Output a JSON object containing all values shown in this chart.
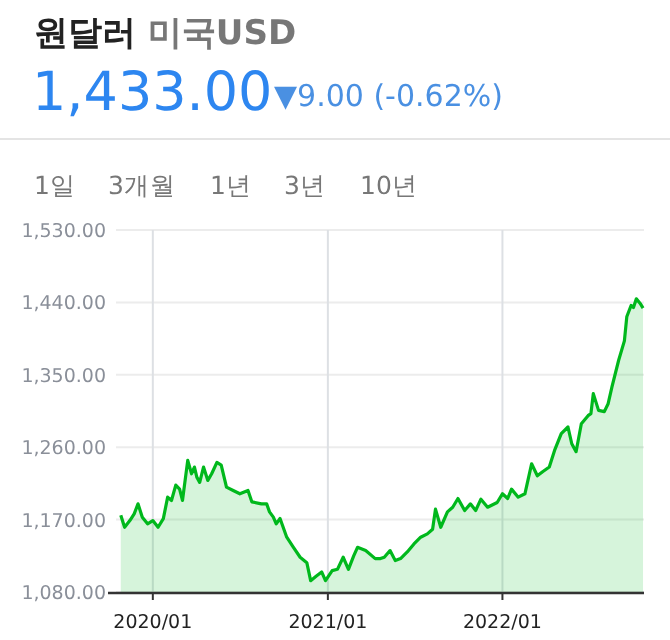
{
  "chart_data": {
    "type": "area",
    "title": "원달러",
    "subtitle": "미국USD",
    "annotations": [
      "1,433.00",
      "▼9.00 (-0.62%)",
      "1일",
      "3개월",
      "1년",
      "3년",
      "10년"
    ],
    "color": "#00b81c",
    "grid": true,
    "xlim": [
      "2019-10-16",
      "2022-10-24"
    ],
    "ylim": [
      1080,
      1530
    ],
    "xticks": [
      {
        "value": "2020-01-01",
        "label": "2020/01"
      },
      {
        "value": "2021-01-01",
        "label": "2021/01"
      },
      {
        "value": "2022-01-01",
        "label": "2022/01"
      }
    ],
    "yticks": [
      {
        "value": 1080,
        "label": "1,080.00"
      },
      {
        "value": 1170,
        "label": "1,170.00"
      },
      {
        "value": 1260,
        "label": "1,260.00"
      },
      {
        "value": 1350,
        "label": "1,350.00"
      },
      {
        "value": 1440,
        "label": "1,440.00"
      },
      {
        "value": 1530,
        "label": "1,530.00"
      }
    ],
    "x": [
      "2019-10-26",
      "2019-11-03",
      "2019-11-14",
      "2019-11-23",
      "2019-12-01",
      "2019-12-10",
      "2019-12-21",
      "2020-01-01",
      "2020-01-12",
      "2020-01-23",
      "2020-02-01",
      "2020-02-09",
      "2020-02-18",
      "2020-02-26",
      "2020-03-03",
      "2020-03-14",
      "2020-03-22",
      "2020-03-28",
      "2020-04-02",
      "2020-04-08",
      "2020-04-16",
      "2020-04-25",
      "2020-05-03",
      "2020-05-14",
      "2020-05-23",
      "2020-06-03",
      "2020-06-17",
      "2020-07-01",
      "2020-07-18",
      "2020-07-26",
      "2020-08-15",
      "2020-08-26",
      "2020-09-01",
      "2020-09-09",
      "2020-09-15",
      "2020-09-23",
      "2020-10-07",
      "2020-10-21",
      "2020-11-04",
      "2020-11-18",
      "2020-11-26",
      "2020-12-08",
      "2020-12-19",
      "2020-12-27",
      "2021-01-10",
      "2021-01-21",
      "2021-02-02",
      "2021-02-13",
      "2021-02-24",
      "2021-03-04",
      "2021-03-21",
      "2021-04-10",
      "2021-04-21",
      "2021-04-29",
      "2021-05-11",
      "2021-05-22",
      "2021-06-02",
      "2021-06-16",
      "2021-06-30",
      "2021-07-14",
      "2021-07-28",
      "2021-08-08",
      "2021-08-14",
      "2021-08-25",
      "2021-09-08",
      "2021-09-19",
      "2021-09-30",
      "2021-10-14",
      "2021-10-26",
      "2021-11-06",
      "2021-11-17",
      "2021-12-01",
      "2021-12-21",
      "2022-01-01",
      "2022-01-12",
      "2022-01-20",
      "2022-02-03",
      "2022-02-17",
      "2022-03-03",
      "2022-03-15",
      "2022-03-26",
      "2022-04-09",
      "2022-04-20",
      "2022-05-04",
      "2022-05-18",
      "2022-05-26",
      "2022-06-04",
      "2022-06-15",
      "2022-06-29",
      "2022-07-05",
      "2022-07-10",
      "2022-07-21",
      "2022-08-02",
      "2022-08-10",
      "2022-08-18",
      "2022-09-01",
      "2022-09-13",
      "2022-09-18",
      "2022-09-27",
      "2022-10-02",
      "2022-10-08",
      "2022-10-16",
      "2022-10-22"
    ],
    "values": [
      1175.5,
      1160.5,
      1168.8,
      1177.1,
      1189.6,
      1173,
      1164.7,
      1168.8,
      1160.5,
      1171.3,
      1197.9,
      1193.8,
      1212.8,
      1207.9,
      1193.8,
      1243.6,
      1227,
      1235.3,
      1222.8,
      1216.2,
      1235.3,
      1218.7,
      1227,
      1241.1,
      1237.8,
      1210.4,
      1206.2,
      1202.1,
      1206.2,
      1192.1,
      1189.6,
      1189.6,
      1179.6,
      1173,
      1164.7,
      1171.3,
      1148.1,
      1135.6,
      1123.2,
      1116.5,
      1094.1,
      1099.9,
      1104.9,
      1094.1,
      1106.6,
      1108.2,
      1123.2,
      1108.2,
      1124.8,
      1135.6,
      1131.5,
      1121.5,
      1121.5,
      1123.2,
      1131.5,
      1119,
      1121.5,
      1129.8,
      1139.8,
      1148.1,
      1152.2,
      1158,
      1183,
      1160.5,
      1179.6,
      1185.4,
      1196.2,
      1181.3,
      1189.6,
      1181.3,
      1195.4,
      1185.4,
      1191.3,
      1202.1,
      1196.2,
      1207.9,
      1197.9,
      1202.1,
      1239.4,
      1224.5,
      1229.5,
      1235.3,
      1256,
      1276.8,
      1285.1,
      1264.3,
      1254.4,
      1289.2,
      1299.2,
      1301.7,
      1326.6,
      1305.8,
      1304.2,
      1314.1,
      1334.9,
      1368.1,
      1392.2,
      1422.1,
      1436.2,
      1433.7,
      1444.5,
      1438.7,
      1433
    ]
  }
}
